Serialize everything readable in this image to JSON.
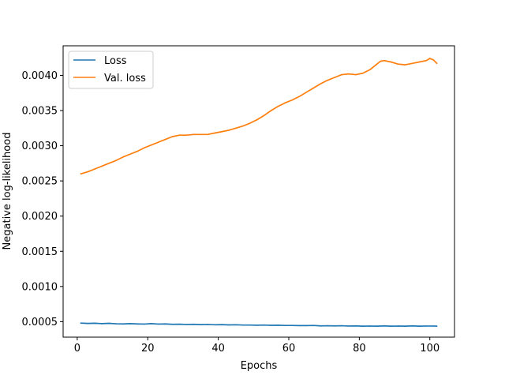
{
  "chart_data": {
    "type": "line",
    "title": "",
    "xlabel": "Epochs",
    "ylabel": "Negative log-likelihood",
    "xlim": [
      -4,
      107
    ],
    "ylim": [
      0.00028,
      0.00442
    ],
    "xticks": [
      0,
      20,
      40,
      60,
      80,
      100
    ],
    "xtick_labels": [
      "0",
      "20",
      "40",
      "60",
      "80",
      "100"
    ],
    "yticks": [
      0.0005,
      0.001,
      0.0015,
      0.002,
      0.0025,
      0.003,
      0.0035,
      0.004
    ],
    "ytick_labels": [
      "0.0005",
      "0.0010",
      "0.0015",
      "0.0020",
      "0.0025",
      "0.0030",
      "0.0035",
      "0.0040"
    ],
    "grid": false,
    "legend_position": "top-left",
    "series": [
      {
        "name": "Loss",
        "color": "#1f77b4",
        "x": [
          1,
          3,
          5,
          7,
          9,
          11,
          13,
          15,
          17,
          19,
          21,
          23,
          25,
          27,
          29,
          31,
          33,
          35,
          37,
          39,
          41,
          43,
          45,
          47,
          49,
          51,
          53,
          55,
          57,
          59,
          61,
          63,
          65,
          67,
          69,
          71,
          73,
          75,
          77,
          79,
          81,
          83,
          85,
          87,
          89,
          91,
          93,
          95,
          97,
          99,
          101,
          102
        ],
        "y": [
          0.00048,
          0.000475,
          0.000478,
          0.000472,
          0.000476,
          0.00047,
          0.000468,
          0.000472,
          0.000468,
          0.000466,
          0.000472,
          0.000466,
          0.000468,
          0.000462,
          0.000464,
          0.00046,
          0.000462,
          0.000458,
          0.00046,
          0.000456,
          0.000458,
          0.000454,
          0.000456,
          0.000452,
          0.000452,
          0.00045,
          0.000452,
          0.000448,
          0.00045,
          0.000446,
          0.000446,
          0.000444,
          0.000444,
          0.000446,
          0.00044,
          0.000442,
          0.00044,
          0.000442,
          0.000438,
          0.00044,
          0.000436,
          0.000438,
          0.000436,
          0.00044,
          0.000436,
          0.000438,
          0.000436,
          0.00044,
          0.000436,
          0.000438,
          0.000438,
          0.000436
        ]
      },
      {
        "name": "Val. loss",
        "color": "#ff7f0e",
        "x": [
          1,
          3,
          5,
          7,
          9,
          11,
          13,
          15,
          17,
          19,
          21,
          23,
          25,
          27,
          29,
          31,
          33,
          35,
          37,
          39,
          41,
          43,
          45,
          47,
          49,
          51,
          53,
          55,
          57,
          59,
          61,
          63,
          65,
          67,
          69,
          71,
          73,
          75,
          77,
          79,
          81,
          83,
          85,
          86,
          87,
          89,
          91,
          93,
          95,
          97,
          99,
          100,
          101,
          102
        ],
        "y": [
          0.0026,
          0.00263,
          0.00267,
          0.00271,
          0.00275,
          0.00279,
          0.00284,
          0.00288,
          0.00292,
          0.00297,
          0.00301,
          0.00305,
          0.00309,
          0.00313,
          0.00315,
          0.00315,
          0.00316,
          0.00316,
          0.00316,
          0.00318,
          0.0032,
          0.00322,
          0.00325,
          0.00328,
          0.00332,
          0.00337,
          0.00343,
          0.0035,
          0.00356,
          0.00361,
          0.00365,
          0.0037,
          0.00376,
          0.00382,
          0.00388,
          0.00393,
          0.00397,
          0.00401,
          0.00402,
          0.00401,
          0.00403,
          0.00408,
          0.00416,
          0.0042,
          0.00421,
          0.00419,
          0.00416,
          0.00415,
          0.00417,
          0.00419,
          0.00421,
          0.00424,
          0.00422,
          0.00417
        ]
      }
    ]
  }
}
